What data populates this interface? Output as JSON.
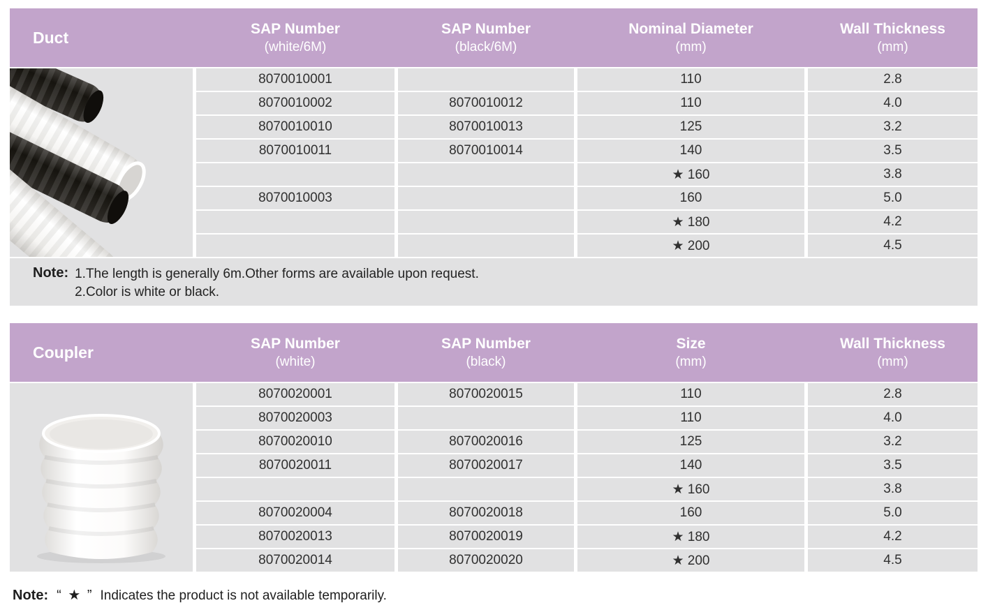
{
  "colors": {
    "header_bg": "#c2a4cb",
    "cell_bg": "#e1e1e2",
    "header_text": "#ffffff",
    "body_text": "#303030",
    "star_color": "#1e1e1e"
  },
  "star_symbol": "★",
  "duct_table": {
    "title": "Duct",
    "columns": [
      {
        "label": "SAP Number",
        "sub": "(white/6M)"
      },
      {
        "label": "SAP Number",
        "sub": "(black/6M)"
      },
      {
        "label": "Nominal Diameter",
        "sub": "(mm)"
      },
      {
        "label": "Wall Thickness",
        "sub": "(mm)"
      }
    ],
    "rows": [
      [
        "8070010001",
        "",
        "110",
        "2.8"
      ],
      [
        "8070010002",
        "8070010012",
        "110",
        "4.0"
      ],
      [
        "8070010010",
        "8070010013",
        "125",
        "3.2"
      ],
      [
        "8070010011",
        "8070010014",
        "140",
        "3.5"
      ],
      [
        "",
        "",
        "★ 160",
        "3.8"
      ],
      [
        "8070010003",
        "",
        "160",
        "5.0"
      ],
      [
        "",
        "",
        "★ 180",
        "4.2"
      ],
      [
        "",
        "",
        "★ 200",
        "4.5"
      ]
    ],
    "image": "black-and-white-corrugated-duct-pipes-photo",
    "note": {
      "label": "Note:",
      "lines": [
        "1.The length is generally 6m.Other forms are available upon request.",
        "2.Color is white or black."
      ]
    }
  },
  "coupler_table": {
    "title": "Coupler",
    "columns": [
      {
        "label": "SAP Number",
        "sub": "(white)"
      },
      {
        "label": "SAP Number",
        "sub": "(black)"
      },
      {
        "label": "Size",
        "sub": "(mm)"
      },
      {
        "label": "Wall Thickness",
        "sub": "(mm)"
      }
    ],
    "rows": [
      [
        "8070020001",
        "8070020015",
        "110",
        "2.8"
      ],
      [
        "8070020003",
        "",
        "110",
        "4.0"
      ],
      [
        "8070020010",
        "8070020016",
        "125",
        "3.2"
      ],
      [
        "8070020011",
        "8070020017",
        "140",
        "3.5"
      ],
      [
        "",
        "",
        "★ 160",
        "3.8"
      ],
      [
        "8070020004",
        "8070020018",
        "160",
        "5.0"
      ],
      [
        "8070020013",
        "8070020019",
        "★ 180",
        "4.2"
      ],
      [
        "8070020014",
        "8070020020",
        "★ 200",
        "4.5"
      ]
    ],
    "image": "white-corrugated-coupler-photo",
    "note": null
  },
  "bottom_note": {
    "label": "Note:",
    "star_quoted": "“ ★ ”",
    "text": "Indicates the product is not available temporarily."
  }
}
